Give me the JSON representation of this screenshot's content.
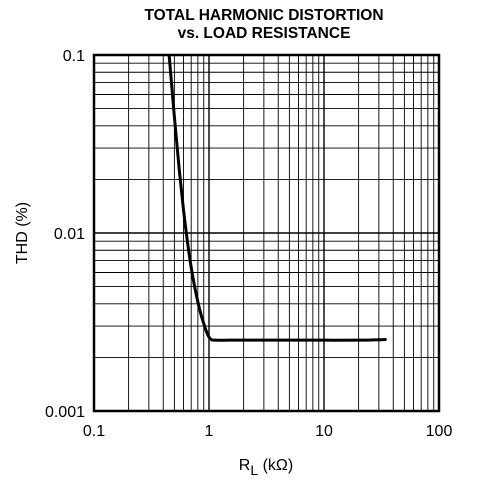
{
  "chart_data": {
    "type": "line",
    "title": "TOTAL HARMONIC DISTORTION",
    "subtitle": "vs. LOAD RESISTANCE",
    "xlabel": "R",
    "xlabel_sub": "L",
    "xlabel_unit": " (kΩ)",
    "ylabel": "THD (%)",
    "x_scale": "log",
    "y_scale": "log",
    "xlim": [
      0.1,
      100
    ],
    "ylim": [
      0.001,
      0.1
    ],
    "x_ticks": [
      {
        "value": 0.1,
        "label": "0.1"
      },
      {
        "value": 1,
        "label": "1"
      },
      {
        "value": 10,
        "label": "10"
      },
      {
        "value": 100,
        "label": "100"
      }
    ],
    "y_ticks": [
      {
        "value": 0.001,
        "label": "0.001"
      },
      {
        "value": 0.01,
        "label": "0.01"
      },
      {
        "value": 0.1,
        "label": "0.1"
      }
    ],
    "grid": true,
    "series": [
      {
        "x": [
          0.45,
          0.5,
          0.55,
          0.6,
          0.65,
          0.7,
          0.75,
          0.8,
          0.85,
          0.9,
          0.95,
          1.0,
          1.05,
          1.1,
          1.5,
          2,
          5,
          10,
          20,
          35
        ],
        "y": [
          0.1,
          0.045,
          0.023,
          0.0135,
          0.0089,
          0.0064,
          0.005,
          0.0041,
          0.0035,
          0.0031,
          0.0028,
          0.0026,
          0.00252,
          0.0025,
          0.0025,
          0.0025,
          0.0025,
          0.0025,
          0.0025,
          0.00252
        ]
      }
    ]
  }
}
